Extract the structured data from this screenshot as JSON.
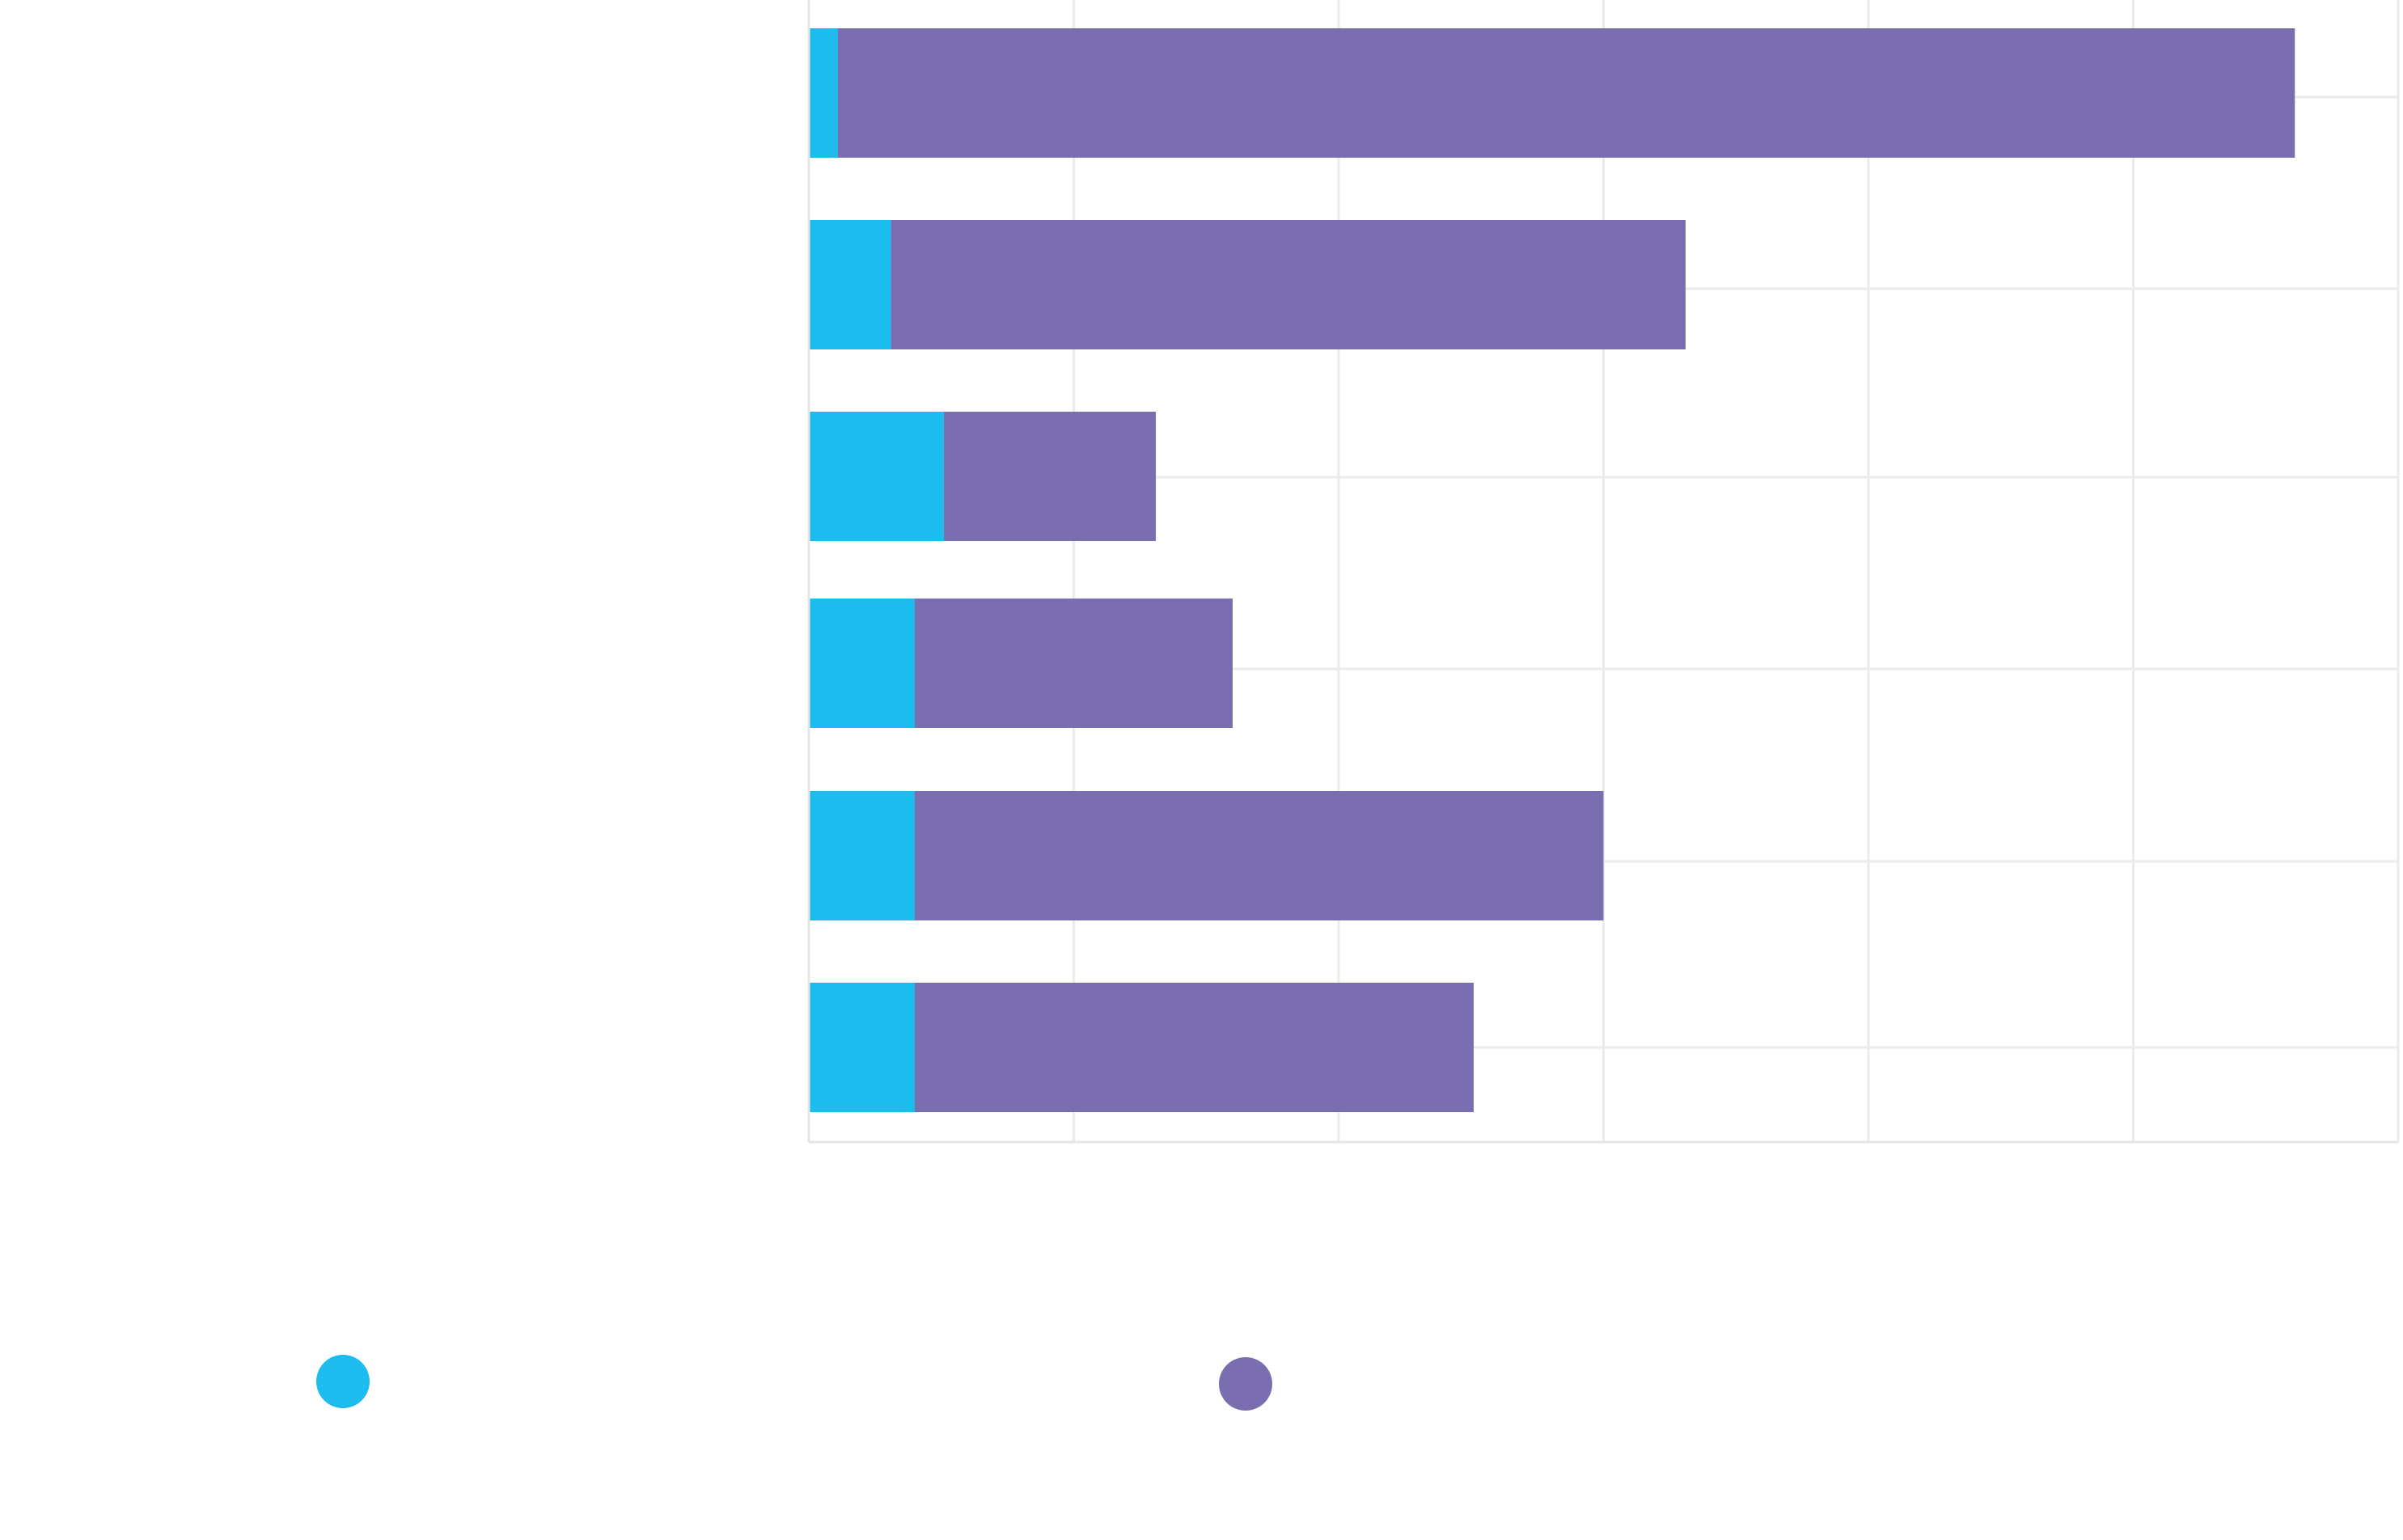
{
  "chart_data": {
    "type": "bar",
    "orientation": "horizontal",
    "stacked": true,
    "categories": [
      "",
      "",
      "",
      "",
      "",
      ""
    ],
    "series": [
      {
        "values": [
          1.1,
          3.1,
          5.1,
          4.0,
          4.0,
          4.0
        ],
        "color": "#1cbcef"
      },
      {
        "values": [
          55.0,
          30.0,
          8.0,
          12.0,
          26.0,
          21.1
        ],
        "color": "#7a6db0"
      }
    ],
    "xlim": [
      0,
      60
    ],
    "x_major_step": 10,
    "grid": true,
    "legend": {
      "placement": "bottom"
    }
  }
}
